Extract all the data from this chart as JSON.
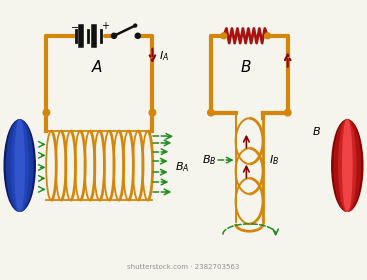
{
  "bg_color": "#f5f5ee",
  "wire_color": "#D4860A",
  "wire_lw": 3.0,
  "wire_lw_thin": 2.0,
  "coil_color": "#D4860A",
  "magnet_blue_light": "#3355cc",
  "magnet_blue_mid": "#1a3a9e",
  "magnet_blue_dark": "#0a1a6e",
  "magnet_red_light": "#ee5533",
  "magnet_red_mid": "#cc1111",
  "magnet_red_dark": "#880000",
  "battery_color": "#111111",
  "switch_color": "#111111",
  "resistor_color": "#aa1111",
  "arrow_green": "#228B22",
  "current_arrow_color": "#8B0000",
  "label_font": 9,
  "watermark": "shutterstock.com · 2382703563"
}
